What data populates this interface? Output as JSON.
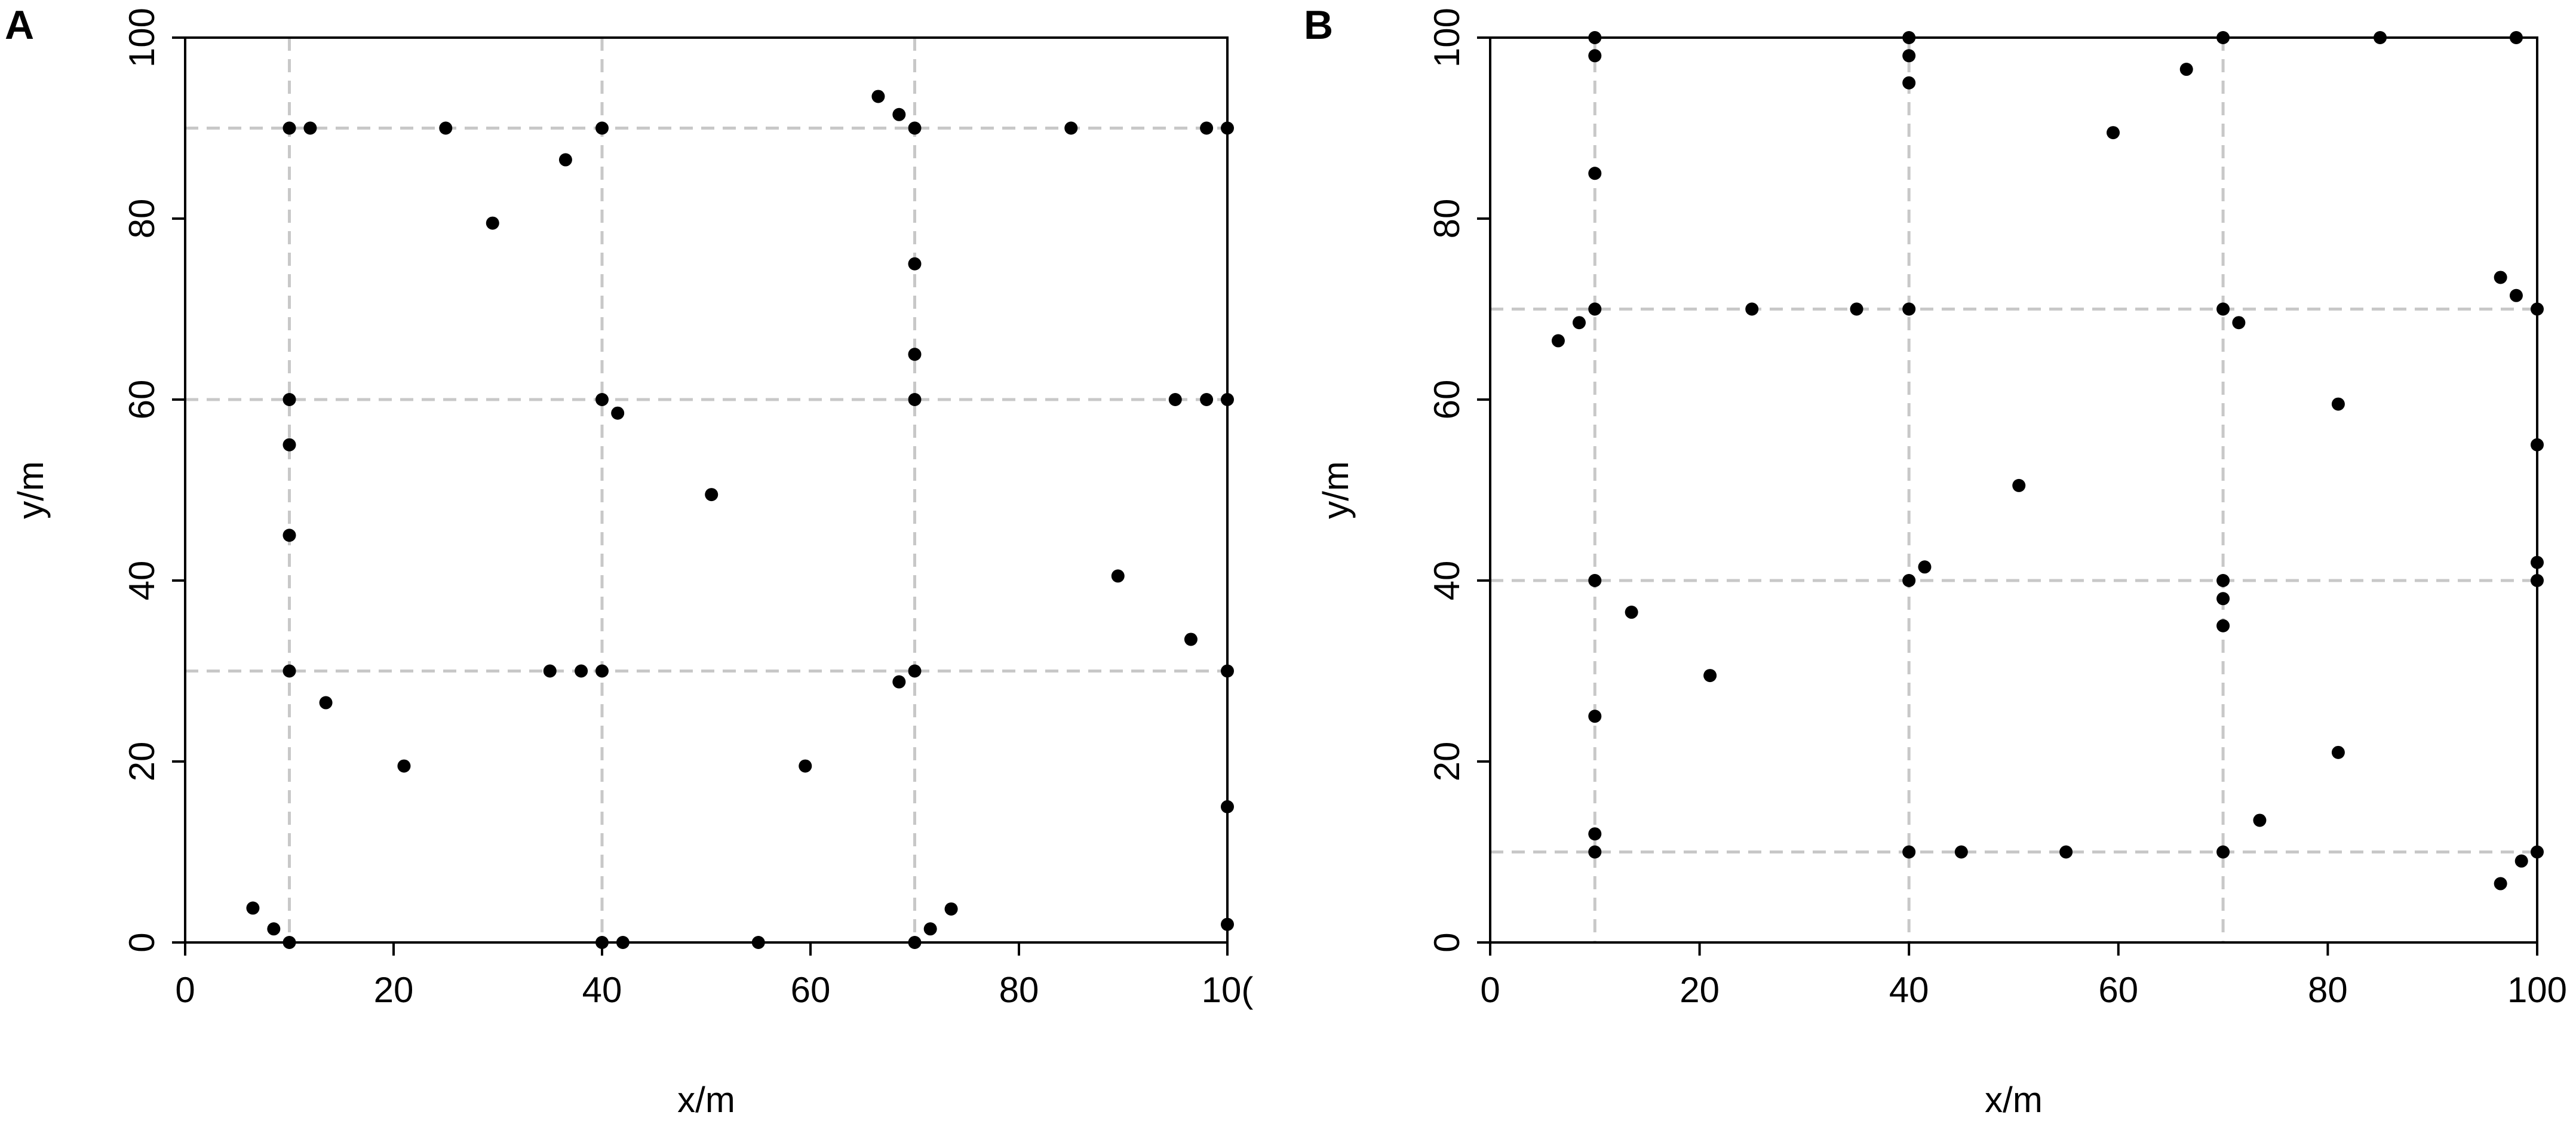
{
  "chart_data": [
    {
      "type": "scatter",
      "panel_label": "A",
      "xlabel": "x/m",
      "ylabel": "y/m",
      "xlim": [
        0,
        100
      ],
      "ylim": [
        0,
        100
      ],
      "x_tick_labels": [
        "0",
        "20",
        "40",
        "60",
        "80",
        "10("
      ],
      "y_tick_labels": [
        "0",
        "20",
        "40",
        "60",
        "80",
        "100"
      ],
      "grid_x": [
        10,
        40,
        70
      ],
      "grid_y": [
        30,
        60,
        90
      ],
      "grid": true,
      "grid_color": "#c8c8c8",
      "point_color": "#000000",
      "points": [
        [
          6.5,
          3.8
        ],
        [
          8.5,
          1.5
        ],
        [
          10,
          0
        ],
        [
          10,
          30
        ],
        [
          10,
          45
        ],
        [
          10,
          55
        ],
        [
          10,
          60
        ],
        [
          10,
          90
        ],
        [
          12,
          90
        ],
        [
          13.5,
          26.5
        ],
        [
          21,
          19.5
        ],
        [
          25,
          90
        ],
        [
          29.5,
          79.5
        ],
        [
          35,
          30
        ],
        [
          36.5,
          86.5
        ],
        [
          38,
          30
        ],
        [
          40,
          30
        ],
        [
          40,
          60
        ],
        [
          40,
          90
        ],
        [
          40,
          0
        ],
        [
          41.5,
          58.5
        ],
        [
          42,
          0
        ],
        [
          50.5,
          49.5
        ],
        [
          55,
          0
        ],
        [
          59.5,
          19.5
        ],
        [
          66.5,
          93.5
        ],
        [
          68.5,
          91.5
        ],
        [
          68.5,
          28.8
        ],
        [
          70,
          30
        ],
        [
          70,
          60
        ],
        [
          70,
          65
        ],
        [
          70,
          75
        ],
        [
          70,
          90
        ],
        [
          70,
          0
        ],
        [
          71.5,
          1.5
        ],
        [
          73.5,
          3.7
        ],
        [
          85,
          90
        ],
        [
          89.5,
          40.5
        ],
        [
          95,
          60
        ],
        [
          96.5,
          33.5
        ],
        [
          98,
          60
        ],
        [
          98,
          90
        ],
        [
          100,
          90
        ],
        [
          100,
          60
        ],
        [
          100,
          30
        ],
        [
          100,
          15
        ],
        [
          100,
          2
        ]
      ]
    },
    {
      "type": "scatter",
      "panel_label": "B",
      "xlabel": "x/m",
      "ylabel": "y/m",
      "xlim": [
        0,
        100
      ],
      "ylim": [
        0,
        100
      ],
      "x_tick_labels": [
        "0",
        "20",
        "40",
        "60",
        "80",
        "100"
      ],
      "y_tick_labels": [
        "0",
        "20",
        "40",
        "60",
        "80",
        "100"
      ],
      "grid_x": [
        10,
        40,
        70
      ],
      "grid_y": [
        10,
        40,
        70
      ],
      "grid": true,
      "grid_color": "#c8c8c8",
      "point_color": "#000000",
      "points": [
        [
          6.5,
          66.5
        ],
        [
          8.5,
          68.5
        ],
        [
          10,
          100
        ],
        [
          10,
          98
        ],
        [
          10,
          85
        ],
        [
          10,
          70
        ],
        [
          10,
          40
        ],
        [
          10,
          25
        ],
        [
          10,
          12
        ],
        [
          10,
          10
        ],
        [
          13.5,
          36.5
        ],
        [
          21,
          29.5
        ],
        [
          25,
          70
        ],
        [
          35,
          70
        ],
        [
          40,
          100
        ],
        [
          40,
          98
        ],
        [
          40,
          95
        ],
        [
          40,
          70
        ],
        [
          40,
          40
        ],
        [
          40,
          10
        ],
        [
          41.5,
          41.5
        ],
        [
          45,
          10
        ],
        [
          50.5,
          50.5
        ],
        [
          55,
          10
        ],
        [
          59.5,
          89.5
        ],
        [
          66.5,
          96.5
        ],
        [
          70,
          100
        ],
        [
          70,
          70
        ],
        [
          70,
          40
        ],
        [
          70,
          38
        ],
        [
          70,
          35
        ],
        [
          70,
          10
        ],
        [
          71.5,
          68.5
        ],
        [
          73.5,
          13.5
        ],
        [
          81,
          59.5
        ],
        [
          81,
          21
        ],
        [
          85,
          100
        ],
        [
          96.5,
          73.5
        ],
        [
          96.5,
          6.5
        ],
        [
          98,
          71.5
        ],
        [
          98,
          100
        ],
        [
          98.5,
          9
        ],
        [
          100,
          70
        ],
        [
          100,
          55
        ],
        [
          100,
          42
        ],
        [
          100,
          40
        ],
        [
          100,
          10
        ]
      ]
    }
  ]
}
